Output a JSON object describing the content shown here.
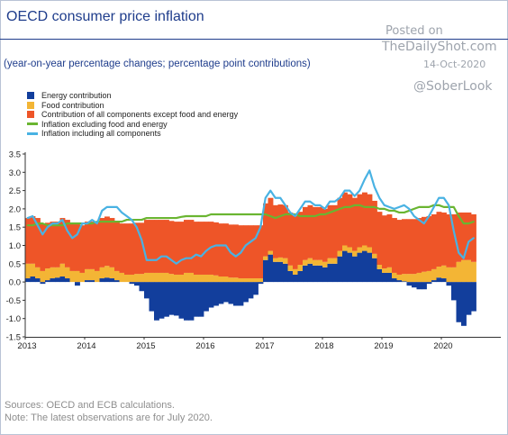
{
  "header": {
    "title": "OECD consumer price inflation",
    "subtitle": "(year-on-year percentage changes; percentage point contributions)"
  },
  "watermark": {
    "posted": "Posted on",
    "site": "TheDailyShot.com",
    "date": "14-Oct-2020",
    "handle": "@SoberLook"
  },
  "footnotes": {
    "sources": "Sources: OECD and ECB calculations.",
    "note": "Note: The latest observations are for July 2020."
  },
  "colors": {
    "energy": "#123e9c",
    "food": "#f3b535",
    "core": "#ee5528",
    "ex_food_energy": "#6ab531",
    "headline": "#49b2e3",
    "axis": "#1f3d8c"
  },
  "chart_data": {
    "type": "bar",
    "x_start": "2013-01",
    "x_end": "2020-07",
    "frequency": "monthly",
    "x_tick_labels": [
      "2013",
      "2014",
      "2015",
      "2016",
      "2017",
      "2018",
      "2019",
      "2020"
    ],
    "y_tick_labels": [
      "3.5",
      "3.0",
      "2.5",
      "2.0",
      "1.5",
      "1.0",
      "0.5",
      "0.0",
      "-0.5",
      "-1.0",
      "-1.5"
    ],
    "ylim": [
      -1.5,
      3.5
    ],
    "grid": false,
    "legend_position": "top-left",
    "series": [
      {
        "name": "Energy contribution",
        "kind": "bar",
        "values": [
          0.1,
          0.15,
          0.1,
          -0.05,
          0.05,
          0.1,
          0.12,
          0.15,
          0.1,
          0,
          -0.1,
          0,
          0.05,
          0.05,
          0,
          0.1,
          0.12,
          0.1,
          0.05,
          0,
          0,
          -0.05,
          -0.1,
          -0.25,
          -0.45,
          -0.8,
          -1.05,
          -1.0,
          -0.95,
          -0.9,
          -0.92,
          -1.0,
          -1.05,
          -1.05,
          -0.95,
          -0.95,
          -0.8,
          -0.7,
          -0.65,
          -0.6,
          -0.55,
          -0.6,
          -0.65,
          -0.65,
          -0.55,
          -0.45,
          -0.35,
          -0.05,
          0.6,
          0.75,
          0.55,
          0.55,
          0.5,
          0.3,
          0.2,
          0.3,
          0.45,
          0.5,
          0.45,
          0.45,
          0.4,
          0.5,
          0.5,
          0.7,
          0.85,
          0.8,
          0.7,
          0.8,
          0.85,
          0.8,
          0.65,
          0.35,
          0.25,
          0.25,
          0.1,
          0.05,
          0.02,
          -0.1,
          -0.15,
          -0.2,
          -0.2,
          -0.05,
          0.05,
          0.12,
          0.1,
          -0.1,
          -0.5,
          -1.1,
          -1.2,
          -0.9,
          -0.8
        ]
      },
      {
        "name": "Food contribution",
        "kind": "bar",
        "values": [
          0.4,
          0.35,
          0.3,
          0.3,
          0.32,
          0.3,
          0.28,
          0.35,
          0.3,
          0.3,
          0.3,
          0.25,
          0.3,
          0.3,
          0.3,
          0.3,
          0.32,
          0.3,
          0.25,
          0.25,
          0.2,
          0.2,
          0.22,
          0.22,
          0.25,
          0.25,
          0.25,
          0.25,
          0.25,
          0.22,
          0.2,
          0.2,
          0.25,
          0.25,
          0.2,
          0.2,
          0.2,
          0.2,
          0.18,
          0.15,
          0.15,
          0.12,
          0.12,
          0.1,
          0.1,
          0.1,
          0.1,
          0.1,
          0.1,
          0.1,
          0.1,
          0.12,
          0.15,
          0.15,
          0.15,
          0.17,
          0.15,
          0.15,
          0.15,
          0.15,
          0.15,
          0.15,
          0.15,
          0.15,
          0.15,
          0.15,
          0.15,
          0.15,
          0.15,
          0.15,
          0.12,
          0.12,
          0.12,
          0.15,
          0.15,
          0.15,
          0.2,
          0.22,
          0.22,
          0.25,
          0.28,
          0.3,
          0.3,
          0.3,
          0.35,
          0.4,
          0.4,
          0.55,
          0.6,
          0.6,
          0.55
        ]
      },
      {
        "name": "Contribution of all components except food and energy",
        "kind": "bar",
        "values": [
          1.25,
          1.3,
          1.35,
          1.3,
          1.25,
          1.25,
          1.25,
          1.25,
          1.3,
          1.3,
          1.3,
          1.3,
          1.3,
          1.3,
          1.35,
          1.35,
          1.35,
          1.35,
          1.35,
          1.35,
          1.4,
          1.4,
          1.4,
          1.4,
          1.45,
          1.45,
          1.45,
          1.45,
          1.45,
          1.45,
          1.45,
          1.45,
          1.45,
          1.45,
          1.45,
          1.45,
          1.45,
          1.45,
          1.45,
          1.45,
          1.45,
          1.45,
          1.45,
          1.45,
          1.45,
          1.45,
          1.45,
          1.45,
          1.45,
          1.45,
          1.45,
          1.45,
          1.45,
          1.45,
          1.45,
          1.45,
          1.45,
          1.45,
          1.45,
          1.45,
          1.45,
          1.45,
          1.45,
          1.45,
          1.45,
          1.45,
          1.45,
          1.45,
          1.45,
          1.45,
          1.45,
          1.45,
          1.45,
          1.45,
          1.5,
          1.5,
          1.5,
          1.5,
          1.5,
          1.5,
          1.5,
          1.5,
          1.5,
          1.5,
          1.45,
          1.45,
          1.45,
          1.35,
          1.3,
          1.3,
          1.3
        ]
      },
      {
        "name": "Inflation excluding food and energy",
        "kind": "line",
        "values": [
          1.55,
          1.55,
          1.6,
          1.6,
          1.55,
          1.55,
          1.55,
          1.55,
          1.6,
          1.6,
          1.6,
          1.6,
          1.6,
          1.6,
          1.65,
          1.65,
          1.65,
          1.65,
          1.65,
          1.65,
          1.7,
          1.7,
          1.7,
          1.7,
          1.75,
          1.75,
          1.75,
          1.75,
          1.75,
          1.75,
          1.75,
          1.78,
          1.8,
          1.8,
          1.8,
          1.8,
          1.8,
          1.85,
          1.85,
          1.85,
          1.85,
          1.85,
          1.85,
          1.85,
          1.85,
          1.85,
          1.85,
          1.85,
          1.85,
          1.8,
          1.75,
          1.8,
          1.85,
          1.85,
          1.85,
          1.8,
          1.8,
          1.8,
          1.8,
          1.85,
          1.85,
          1.9,
          1.95,
          2.0,
          2.05,
          2.05,
          2.1,
          2.1,
          2.05,
          2.05,
          2.05,
          2.0,
          2.0,
          1.95,
          1.95,
          1.9,
          1.9,
          1.95,
          2.0,
          2.05,
          2.05,
          2.05,
          2.1,
          2.1,
          2.05,
          2.05,
          2.05,
          1.8,
          1.6,
          1.6,
          1.65
        ]
      },
      {
        "name": "Inflation including all components",
        "kind": "line",
        "values": [
          1.75,
          1.8,
          1.55,
          1.3,
          1.5,
          1.6,
          1.6,
          1.7,
          1.4,
          1.2,
          1.3,
          1.6,
          1.6,
          1.7,
          1.6,
          1.95,
          2.05,
          2.05,
          2.05,
          1.9,
          1.8,
          1.7,
          1.5,
          1.15,
          0.6,
          0.6,
          0.6,
          0.7,
          0.7,
          0.6,
          0.5,
          0.6,
          0.65,
          0.65,
          0.75,
          0.7,
          0.85,
          0.95,
          1.0,
          1.0,
          1.0,
          0.8,
          0.7,
          0.8,
          1.0,
          1.1,
          1.2,
          1.5,
          2.3,
          2.5,
          2.3,
          2.3,
          2.1,
          1.9,
          1.8,
          2.0,
          2.2,
          2.2,
          2.1,
          2.1,
          2.0,
          2.2,
          2.2,
          2.3,
          2.5,
          2.5,
          2.35,
          2.5,
          2.8,
          3.05,
          2.6,
          2.3,
          2.1,
          2.05,
          2.0,
          2.05,
          2.1,
          2.0,
          1.8,
          1.7,
          1.6,
          1.8,
          2.05,
          2.3,
          2.3,
          2.1,
          1.4,
          0.8,
          0.65,
          1.1,
          1.2
        ]
      }
    ]
  }
}
